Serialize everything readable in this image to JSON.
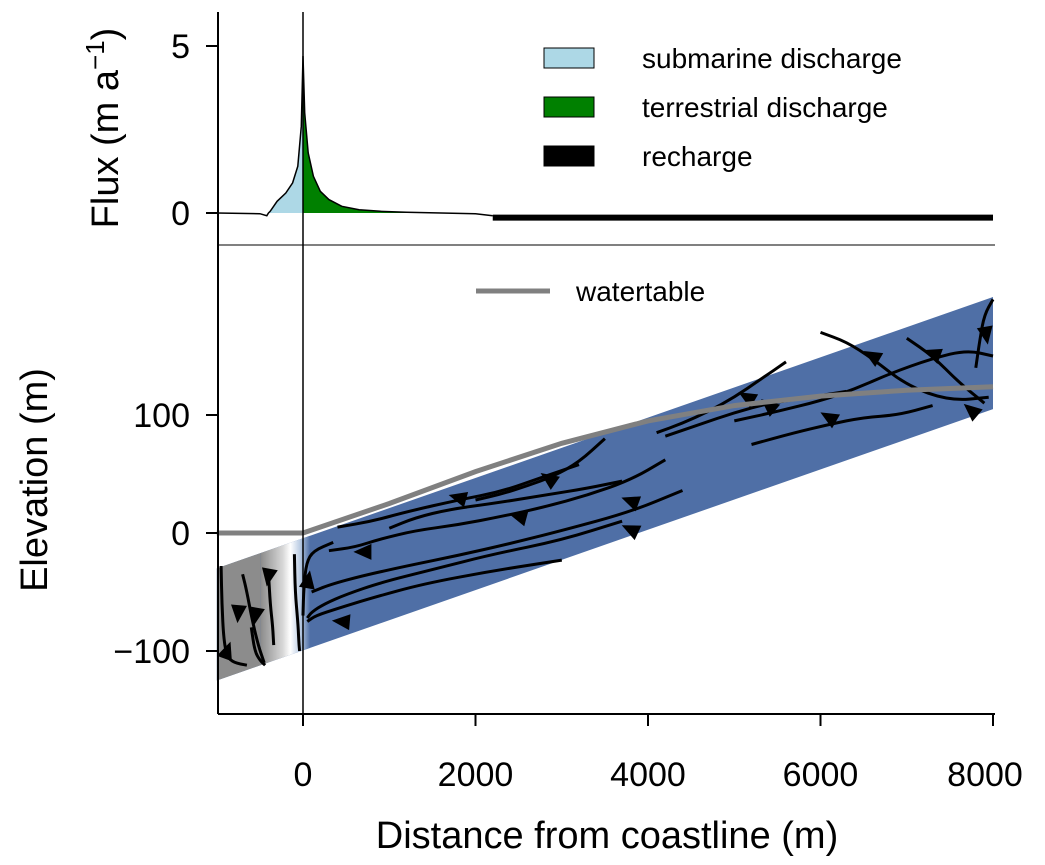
{
  "chart_data": [
    {
      "type": "area",
      "panel": "flux",
      "ylabel": "Flux (m a",
      "ylabel_sup": "−1",
      "ylabel_end": ")",
      "y_ticks": [
        0,
        5
      ],
      "xlim": [
        -1000,
        8000
      ],
      "ylim": [
        -0.9,
        6
      ],
      "series": [
        {
          "name": "submarine discharge",
          "color": "#add8e6",
          "x": [
            -400,
            -380,
            -300,
            -200,
            -120,
            -60,
            -20,
            0
          ],
          "y": [
            0,
            0.05,
            0.35,
            0.6,
            0.9,
            1.4,
            2.6,
            4.7
          ]
        },
        {
          "name": "terrestrial discharge",
          "color": "#008000",
          "x": [
            0,
            20,
            60,
            120,
            200,
            300,
            450,
            650,
            900,
            1200,
            1600
          ],
          "y": [
            4.7,
            3.0,
            1.8,
            1.1,
            0.65,
            0.4,
            0.2,
            0.1,
            0.05,
            0.02,
            0
          ]
        },
        {
          "name": "recharge",
          "color": "#000000",
          "x": [
            2200,
            8000
          ],
          "y": [
            -0.08,
            -0.08
          ]
        }
      ],
      "outline": {
        "x": [
          -1000,
          -500,
          -420,
          -400,
          -380,
          -300,
          -200,
          -120,
          -60,
          -20,
          0,
          20,
          60,
          120,
          200,
          300,
          450,
          650,
          900,
          1200,
          1600,
          2000,
          2200
        ],
        "y": [
          0,
          -0.02,
          -0.08,
          0,
          0.05,
          0.35,
          0.6,
          0.9,
          1.4,
          2.6,
          4.7,
          3.0,
          1.8,
          1.1,
          0.65,
          0.4,
          0.2,
          0.1,
          0.05,
          0.02,
          0,
          -0.02,
          -0.08
        ]
      }
    },
    {
      "type": "line",
      "panel": "elevation",
      "xlabel": "Distance from coastline (m)",
      "ylabel": "Elevation (m)",
      "x_ticks": [
        0,
        2000,
        4000,
        6000,
        8000
      ],
      "x_tick_labels": [
        "0",
        "2000",
        "4000",
        "6000",
        "8000"
      ],
      "y_ticks": [
        -100,
        0,
        100
      ],
      "y_tick_labels": [
        "−100",
        "0",
        "100"
      ],
      "xlim": [
        -1000,
        8000
      ],
      "ylim": [
        -150,
        220
      ],
      "domain": {
        "top_left": [
          -1000,
          -30
        ],
        "top_right": [
          8000,
          200
        ],
        "bottom_left": [
          -1000,
          -125
        ],
        "bottom_right": [
          8000,
          105
        ],
        "colors": {
          "fresh": "#4f6fa6",
          "saline": "#8c8c8c",
          "mixing": "#ffffff"
        },
        "fresh_saline_interface_x": [
          -200,
          -150
        ]
      },
      "series": [
        {
          "name": "watertable",
          "color": "#808080",
          "x": [
            -1000,
            0,
            1000,
            2000,
            3000,
            4000,
            5000,
            6000,
            7000,
            8000
          ],
          "y": [
            0,
            0,
            25,
            52,
            76,
            95,
            108,
            116,
            121,
            124
          ]
        }
      ],
      "streamlines": [
        {
          "x": [
            8000,
            7900,
            7850,
            7800
          ],
          "y": [
            198,
            185,
            165,
            140
          ]
        },
        {
          "x": [
            8000,
            7700,
            7300,
            6800,
            6400,
            6000,
            5500,
            5000
          ],
          "y": [
            150,
            155,
            148,
            135,
            122,
            112,
            103,
            95
          ]
        },
        {
          "x": [
            7900,
            7600,
            7300,
            7000
          ],
          "y": [
            110,
            128,
            150,
            165
          ]
        },
        {
          "x": [
            7950,
            7500,
            7000,
            6600,
            6300,
            6000
          ],
          "y": [
            115,
            112,
            125,
            148,
            162,
            170
          ]
        },
        {
          "x": [
            7300,
            6900,
            6500,
            6100,
            5700,
            5200
          ],
          "y": [
            108,
            100,
            98,
            92,
            85,
            75
          ]
        },
        {
          "x": [
            5600,
            5300,
            5000,
            4700,
            4400,
            4100
          ],
          "y": [
            145,
            130,
            115,
            103,
            93,
            85
          ]
        },
        {
          "x": [
            6300,
            5800,
            5400,
            5000,
            4600,
            4200
          ],
          "y": [
            120,
            114,
            110,
            102,
            92,
            82
          ]
        },
        {
          "x": [
            3500,
            3200,
            2900,
            2600,
            2300,
            2000
          ],
          "y": [
            80,
            60,
            48,
            40,
            33,
            28
          ]
        },
        {
          "x": [
            3700,
            3300,
            2800,
            2200,
            1700,
            1300,
            1000
          ],
          "y": [
            44,
            38,
            32,
            25,
            20,
            13,
            4
          ]
        },
        {
          "x": [
            3200,
            2800,
            2300,
            1800,
            1200,
            800,
            400
          ],
          "y": [
            58,
            48,
            35,
            28,
            18,
            10,
            5
          ]
        },
        {
          "x": [
            4200,
            3800,
            3300,
            2800,
            2300,
            1800,
            1300,
            900,
            600,
            300
          ],
          "y": [
            62,
            45,
            32,
            22,
            14,
            7,
            2,
            -5,
            -12,
            -15
          ]
        },
        {
          "x": [
            4400,
            3800,
            3000,
            2400,
            1800,
            1200,
            700,
            300,
            100
          ],
          "y": [
            36,
            18,
            2,
            -9,
            -19,
            -28,
            -36,
            -44,
            -50
          ]
        },
        {
          "x": [
            3700,
            3000,
            2200,
            1500,
            900,
            500,
            250,
            100,
            50
          ],
          "y": [
            10,
            -6,
            -18,
            -31,
            -42,
            -52,
            -60,
            -67,
            -72
          ]
        },
        {
          "x": [
            3000,
            2200,
            1400,
            800,
            400,
            150,
            50
          ],
          "y": [
            -23,
            -32,
            -43,
            -55,
            -64,
            -70,
            -75
          ]
        },
        {
          "x": [
            350,
            120,
            40,
            10,
            0
          ],
          "y": [
            -8,
            -15,
            -25,
            -45,
            -70
          ]
        },
        {
          "x": [
            -100,
            -90,
            -60,
            -50,
            -40
          ],
          "y": [
            -18,
            -50,
            -75,
            -90,
            -100
          ]
        },
        {
          "x": [
            -700,
            -650,
            -600,
            -520,
            -450
          ],
          "y": [
            -35,
            -50,
            -70,
            -95,
            -110
          ]
        },
        {
          "x": [
            -400,
            -380,
            -350,
            -340
          ],
          "y": [
            -35,
            -60,
            -80,
            -95
          ]
        },
        {
          "x": [
            -950,
            -940,
            -920,
            -880,
            -800,
            -650
          ],
          "y": [
            -28,
            -60,
            -90,
            -105,
            -110,
            -112
          ]
        },
        {
          "x": [
            -600,
            -560,
            -500,
            -440
          ],
          "y": [
            -80,
            -100,
            -108,
            -112
          ]
        }
      ],
      "arrows": [
        {
          "x": 7920,
          "y": 168,
          "angle": 80
        },
        {
          "x": 7300,
          "y": 152,
          "angle": 200
        },
        {
          "x": 6600,
          "y": 150,
          "angle": 210
        },
        {
          "x": 5150,
          "y": 115,
          "angle": 210
        },
        {
          "x": 5400,
          "y": 108,
          "angle": 220
        },
        {
          "x": 6100,
          "y": 98,
          "angle": 210
        },
        {
          "x": 7750,
          "y": 104,
          "angle": 220
        },
        {
          "x": 2850,
          "y": 46,
          "angle": 215
        },
        {
          "x": 1800,
          "y": 30,
          "angle": 195
        },
        {
          "x": 2500,
          "y": 14,
          "angle": 195
        },
        {
          "x": 3800,
          "y": 27,
          "angle": 200
        },
        {
          "x": 3800,
          "y": 3,
          "angle": 205
        },
        {
          "x": 700,
          "y": -16,
          "angle": 180
        },
        {
          "x": 450,
          "y": -75,
          "angle": 185
        },
        {
          "x": 60,
          "y": -40,
          "angle": 280
        },
        {
          "x": -400,
          "y": -37,
          "angle": 100
        },
        {
          "x": -750,
          "y": -68,
          "angle": 95
        },
        {
          "x": -550,
          "y": -70,
          "angle": 100
        },
        {
          "x": -880,
          "y": -100,
          "angle": 290
        }
      ]
    }
  ]
}
